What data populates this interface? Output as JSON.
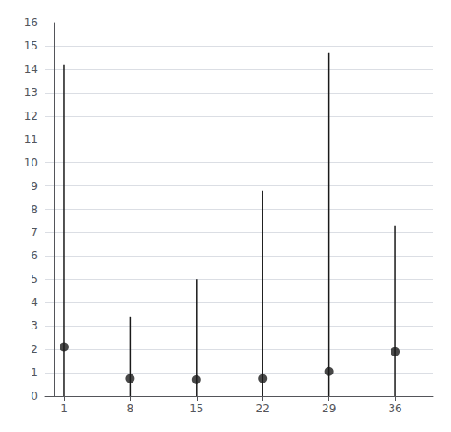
{
  "chart_data": {
    "type": "range",
    "x": [
      1,
      8,
      15,
      22,
      29,
      36
    ],
    "values": [
      2.1,
      0.75,
      0.7,
      0.75,
      1.05,
      1.9
    ],
    "low": [
      0.0,
      0.0,
      0.0,
      0.0,
      0.0,
      0.0
    ],
    "high": [
      14.2,
      3.4,
      5.0,
      8.8,
      14.7,
      7.3
    ],
    "color": "#1a1a1a",
    "xlim": [
      -1,
      40
    ],
    "xticks": [
      1,
      8,
      15,
      22,
      29,
      36
    ],
    "ylim": [
      0,
      16
    ],
    "yticks": [
      0,
      1,
      2,
      3,
      4,
      5,
      6,
      7,
      8,
      9,
      10,
      11,
      12,
      13,
      14,
      15,
      16
    ],
    "grid": true
  }
}
